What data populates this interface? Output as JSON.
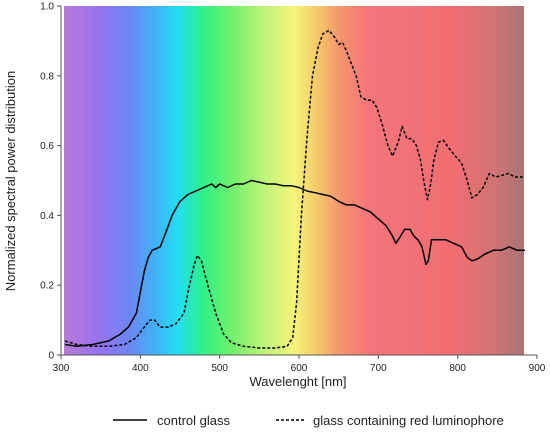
{
  "chart_data": {
    "type": "line",
    "title": "",
    "xlabel": "Wavelenght [nm]",
    "ylabel": "Normalized spectral power distribution",
    "xlim": [
      300,
      900
    ],
    "ylim": [
      0,
      1
    ],
    "x_ticks": [
      "300",
      "400",
      "500",
      "600",
      "700",
      "800",
      "900"
    ],
    "y_ticks": [
      "0",
      "0.2",
      "0.4",
      "0.6",
      "0.8",
      "1.0"
    ],
    "background": "visible-spectrum gradient from about 305 nm (violet) to 880 nm (dark red)",
    "grid": false,
    "legend_position": "bottom",
    "series": [
      {
        "name": "control glass",
        "style": "solid",
        "color": "#000000",
        "points": [
          [
            305,
            0.03
          ],
          [
            320,
            0.025
          ],
          [
            340,
            0.03
          ],
          [
            360,
            0.04
          ],
          [
            375,
            0.06
          ],
          [
            385,
            0.08
          ],
          [
            395,
            0.12
          ],
          [
            400,
            0.18
          ],
          [
            405,
            0.24
          ],
          [
            410,
            0.28
          ],
          [
            415,
            0.3
          ],
          [
            425,
            0.31
          ],
          [
            432,
            0.35
          ],
          [
            440,
            0.4
          ],
          [
            450,
            0.44
          ],
          [
            460,
            0.46
          ],
          [
            470,
            0.47
          ],
          [
            480,
            0.48
          ],
          [
            490,
            0.49
          ],
          [
            495,
            0.48
          ],
          [
            500,
            0.49
          ],
          [
            510,
            0.48
          ],
          [
            520,
            0.49
          ],
          [
            530,
            0.49
          ],
          [
            540,
            0.5
          ],
          [
            550,
            0.495
          ],
          [
            560,
            0.49
          ],
          [
            570,
            0.49
          ],
          [
            580,
            0.485
          ],
          [
            590,
            0.485
          ],
          [
            600,
            0.48
          ],
          [
            610,
            0.47
          ],
          [
            620,
            0.465
          ],
          [
            630,
            0.46
          ],
          [
            640,
            0.455
          ],
          [
            650,
            0.44
          ],
          [
            660,
            0.43
          ],
          [
            670,
            0.43
          ],
          [
            680,
            0.42
          ],
          [
            690,
            0.41
          ],
          [
            700,
            0.39
          ],
          [
            710,
            0.37
          ],
          [
            718,
            0.34
          ],
          [
            722,
            0.32
          ],
          [
            728,
            0.34
          ],
          [
            733,
            0.36
          ],
          [
            740,
            0.36
          ],
          [
            745,
            0.34
          ],
          [
            750,
            0.33
          ],
          [
            755,
            0.31
          ],
          [
            760,
            0.26
          ],
          [
            763,
            0.27
          ],
          [
            767,
            0.33
          ],
          [
            775,
            0.33
          ],
          [
            785,
            0.33
          ],
          [
            795,
            0.32
          ],
          [
            805,
            0.31
          ],
          [
            812,
            0.28
          ],
          [
            818,
            0.27
          ],
          [
            825,
            0.275
          ],
          [
            835,
            0.29
          ],
          [
            845,
            0.3
          ],
          [
            855,
            0.3
          ],
          [
            865,
            0.31
          ],
          [
            875,
            0.3
          ],
          [
            885,
            0.3
          ]
        ]
      },
      {
        "name": "glass containing red luminophore",
        "style": "dashed",
        "color": "#000000",
        "points": [
          [
            305,
            0.04
          ],
          [
            320,
            0.03
          ],
          [
            340,
            0.025
          ],
          [
            360,
            0.025
          ],
          [
            380,
            0.03
          ],
          [
            395,
            0.05
          ],
          [
            405,
            0.08
          ],
          [
            412,
            0.1
          ],
          [
            418,
            0.1
          ],
          [
            425,
            0.08
          ],
          [
            435,
            0.08
          ],
          [
            445,
            0.09
          ],
          [
            455,
            0.12
          ],
          [
            462,
            0.2
          ],
          [
            468,
            0.26
          ],
          [
            472,
            0.285
          ],
          [
            477,
            0.27
          ],
          [
            485,
            0.2
          ],
          [
            495,
            0.12
          ],
          [
            505,
            0.06
          ],
          [
            515,
            0.035
          ],
          [
            530,
            0.025
          ],
          [
            550,
            0.02
          ],
          [
            570,
            0.02
          ],
          [
            585,
            0.025
          ],
          [
            592,
            0.05
          ],
          [
            597,
            0.15
          ],
          [
            603,
            0.4
          ],
          [
            610,
            0.62
          ],
          [
            617,
            0.8
          ],
          [
            624,
            0.88
          ],
          [
            630,
            0.92
          ],
          [
            638,
            0.93
          ],
          [
            645,
            0.91
          ],
          [
            650,
            0.89
          ],
          [
            655,
            0.895
          ],
          [
            660,
            0.87
          ],
          [
            665,
            0.84
          ],
          [
            672,
            0.8
          ],
          [
            678,
            0.74
          ],
          [
            685,
            0.73
          ],
          [
            692,
            0.73
          ],
          [
            698,
            0.71
          ],
          [
            705,
            0.66
          ],
          [
            712,
            0.6
          ],
          [
            718,
            0.57
          ],
          [
            725,
            0.61
          ],
          [
            730,
            0.655
          ],
          [
            736,
            0.62
          ],
          [
            742,
            0.62
          ],
          [
            748,
            0.6
          ],
          [
            753,
            0.56
          ],
          [
            758,
            0.49
          ],
          [
            762,
            0.445
          ],
          [
            766,
            0.49
          ],
          [
            770,
            0.56
          ],
          [
            776,
            0.61
          ],
          [
            782,
            0.615
          ],
          [
            790,
            0.59
          ],
          [
            797,
            0.57
          ],
          [
            805,
            0.55
          ],
          [
            812,
            0.5
          ],
          [
            818,
            0.45
          ],
          [
            825,
            0.46
          ],
          [
            832,
            0.48
          ],
          [
            840,
            0.52
          ],
          [
            848,
            0.51
          ],
          [
            856,
            0.515
          ],
          [
            864,
            0.52
          ],
          [
            872,
            0.51
          ],
          [
            882,
            0.51
          ]
        ]
      }
    ]
  }
}
